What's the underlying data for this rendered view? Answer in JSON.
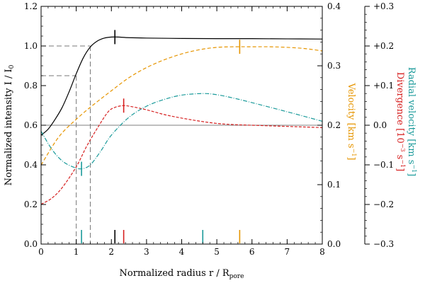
{
  "chart_data": {
    "type": "line",
    "title": "",
    "xlabel": "Normalized radius   r / R",
    "xlabel_sub": "pore",
    "ylabel_left": "Normalized intensity   I / I",
    "ylabel_left_sub": "0",
    "ylabel_right1_parts": [
      {
        "text": "Velocity  [km s",
        "color": "#e69500"
      },
      {
        "text": "Divergence  [10",
        "color": "#d62020"
      }
    ],
    "ylabel_right1_velocity": "Velocity  [km s",
    "ylabel_right1_divergence": "Divergence  [10",
    "ylabel_right2": "Radial velocity  [km s",
    "xlim": [
      0,
      8
    ],
    "ylim_left": [
      0,
      1.2
    ],
    "ylim_right1": [
      0,
      0.4
    ],
    "ylim_right2": [
      -0.3,
      0.3
    ],
    "x_ticks": [
      0,
      1,
      2,
      3,
      4,
      5,
      6,
      7,
      8
    ],
    "x_tick_labels": [
      "0",
      "1",
      "2",
      "3",
      "4",
      "5",
      "6",
      "7",
      "8"
    ],
    "left_ticks": [
      0.0,
      0.2,
      0.4,
      0.6,
      0.8,
      1.0,
      1.2
    ],
    "left_tick_labels": [
      "0.0",
      "0.2",
      "0.4",
      "0.6",
      "0.8",
      "1.0",
      "1.2"
    ],
    "right1_ticks": [
      0.0,
      0.1,
      0.2,
      0.3,
      0.4
    ],
    "right1_tick_labels": [
      "0.0",
      "0.1",
      "0.2",
      "0.3",
      "0.4"
    ],
    "right2_ticks": [
      -0.3,
      -0.2,
      -0.1,
      0.0,
      0.1,
      0.2,
      0.3
    ],
    "right2_tick_labels": [
      "−0.3",
      "−0.2",
      "−0.1",
      "0.0",
      "+0.1",
      "+0.2",
      "+0.3"
    ],
    "reference_line_y": 0.6,
    "threshold_guides": [
      {
        "level": 0.85,
        "x": 1.0
      },
      {
        "level": 1.0,
        "x": 1.4
      }
    ],
    "series": [
      {
        "name": "Normalized intensity",
        "axis": "left",
        "color": "#000000",
        "dash": "solid",
        "x": [
          0,
          0.2,
          0.4,
          0.6,
          0.8,
          1.0,
          1.2,
          1.4,
          1.6,
          1.8,
          2.0,
          2.2,
          2.5,
          3,
          4,
          5,
          6,
          7,
          8
        ],
        "y": [
          0.55,
          0.58,
          0.63,
          0.69,
          0.77,
          0.86,
          0.94,
          0.995,
          1.025,
          1.04,
          1.045,
          1.045,
          1.042,
          1.04,
          1.038,
          1.037,
          1.037,
          1.036,
          1.035
        ],
        "marker_x": 2.1
      },
      {
        "name": "Velocity",
        "axis": "right1",
        "color": "#e69500",
        "dash": "5,3",
        "x": [
          0,
          0.5,
          1.0,
          1.5,
          2.0,
          2.5,
          3.0,
          3.5,
          4.0,
          4.5,
          5.0,
          5.5,
          6.0,
          6.5,
          7.0,
          7.5,
          8.0
        ],
        "y": [
          0.133,
          0.18,
          0.21,
          0.235,
          0.258,
          0.28,
          0.297,
          0.31,
          0.32,
          0.327,
          0.331,
          0.332,
          0.332,
          0.332,
          0.331,
          0.329,
          0.325
        ],
        "marker_x": 5.65
      },
      {
        "name": "Divergence",
        "axis": "right1",
        "color": "#d62020",
        "dash": "4,2",
        "x": [
          0,
          0.3,
          0.6,
          1.0,
          1.3,
          1.6,
          1.9,
          2.1,
          2.35,
          2.6,
          3.0,
          3.5,
          4.0,
          4.5,
          5.0,
          5.5,
          6.0,
          6.5,
          7.0,
          7.5,
          8.0
        ],
        "y": [
          0.067,
          0.077,
          0.095,
          0.13,
          0.165,
          0.195,
          0.222,
          0.23,
          0.233,
          0.231,
          0.226,
          0.218,
          0.212,
          0.207,
          0.203,
          0.201,
          0.2,
          0.199,
          0.198,
          0.197,
          0.196
        ],
        "marker_x": 2.35
      },
      {
        "name": "Radial velocity",
        "axis": "right2",
        "color": "#1a9a9a",
        "dash": "6,2,1,2",
        "x": [
          0,
          0.3,
          0.6,
          0.9,
          1.15,
          1.4,
          1.7,
          2.0,
          2.5,
          3.0,
          3.5,
          4.0,
          4.6,
          5.0,
          5.5,
          6.0,
          7.0,
          8.0
        ],
        "y": [
          -0.015,
          -0.06,
          -0.09,
          -0.105,
          -0.11,
          -0.1,
          -0.065,
          -0.025,
          0.02,
          0.048,
          0.065,
          0.076,
          0.08,
          0.077,
          0.068,
          0.057,
          0.034,
          0.01
        ],
        "marker_x": 1.15
      }
    ],
    "bottom_markers": [
      {
        "x": 1.15,
        "color": "#1a9a9a"
      },
      {
        "x": 2.1,
        "color": "#000000"
      },
      {
        "x": 2.35,
        "color": "#d62020"
      },
      {
        "x": 4.6,
        "color": "#1a9a9a"
      },
      {
        "x": 5.65,
        "color": "#e69500"
      }
    ]
  }
}
